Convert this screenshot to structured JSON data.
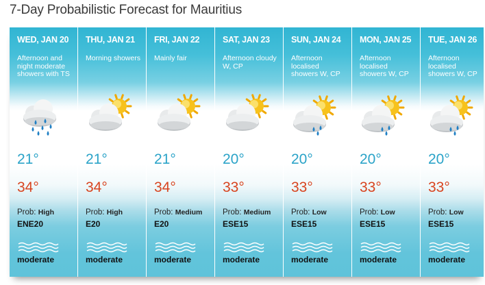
{
  "title": "7-Day Probabilistic Forecast for Mauritius",
  "prob_label": "Prob:",
  "days": [
    {
      "day": "WED, JAN 20",
      "desc": "Afternoon and night moderate showers with TS",
      "icon": "heavy-showers-icon",
      "min": "21°",
      "max": "34°",
      "prob": "High",
      "wind": "ENE20",
      "sea": "moderate"
    },
    {
      "day": "THU, JAN 21",
      "desc": "Morning showers",
      "icon": "sun-behind-cloud-icon",
      "min": "21°",
      "max": "34°",
      "prob": "High",
      "wind": "E20",
      "sea": "moderate"
    },
    {
      "day": "FRI, JAN 22",
      "desc": "Mainly fair",
      "icon": "sun-behind-cloud-icon",
      "min": "21°",
      "max": "34°",
      "prob": "Medium",
      "wind": "E20",
      "sea": "moderate"
    },
    {
      "day": "SAT, JAN 23",
      "desc": "Afternoon cloudy W, CP",
      "icon": "sun-behind-cloud-icon",
      "min": "20°",
      "max": "33°",
      "prob": "Medium",
      "wind": "ESE15",
      "sea": "moderate"
    },
    {
      "day": "SUN, JAN 24",
      "desc": "Afternoon localised showers W, CP",
      "icon": "sun-cloud-showers-icon",
      "min": "20°",
      "max": "33°",
      "prob": "Low",
      "wind": "ESE15",
      "sea": "moderate"
    },
    {
      "day": "MON, JAN 25",
      "desc": "Afternoon localised showers W, CP",
      "icon": "sun-cloud-showers-icon",
      "min": "20°",
      "max": "33°",
      "prob": "Low",
      "wind": "ESE15",
      "sea": "moderate"
    },
    {
      "day": "TUE, JAN 26",
      "desc": "Afternoon localised showers W, CP",
      "icon": "sun-cloud-showers-icon",
      "min": "20°",
      "max": "33°",
      "prob": "Low",
      "wind": "ESE15",
      "sea": "moderate"
    }
  ],
  "colors": {
    "min_temp": "#2aa3c8",
    "max_temp": "#d8441f",
    "panel": "#31b5d3"
  }
}
